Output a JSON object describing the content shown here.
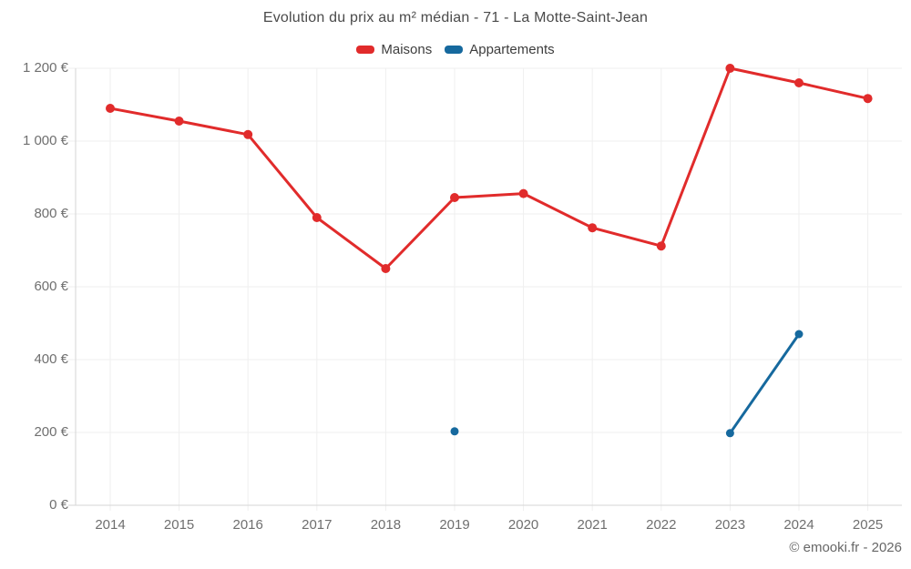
{
  "chart_data": {
    "type": "line",
    "title": "Evolution du prix au m² médian - 71 - La Motte-Saint-Jean",
    "categories": [
      "2014",
      "2015",
      "2016",
      "2017",
      "2018",
      "2019",
      "2020",
      "2021",
      "2022",
      "2023",
      "2024",
      "2025"
    ],
    "series": [
      {
        "name": "Maisons",
        "color": "#e12b2b",
        "values": [
          1090,
          1055,
          1018,
          790,
          650,
          845,
          856,
          762,
          712,
          1200,
          1160,
          1117
        ]
      },
      {
        "name": "Appartements",
        "color": "#16699e",
        "values": [
          null,
          null,
          null,
          null,
          null,
          203,
          null,
          null,
          null,
          198,
          470,
          null
        ]
      }
    ],
    "ylim": [
      0,
      1200
    ],
    "ytick_step": 200,
    "ytick_labels": [
      "0 €",
      "200 €",
      "400 €",
      "600 €",
      "800 €",
      "1 000 €",
      "1 200 €"
    ],
    "currency_suffix": " €",
    "grid": true,
    "legend_position": "top"
  },
  "footer": {
    "copyright": "© emooki.fr - 2026"
  }
}
